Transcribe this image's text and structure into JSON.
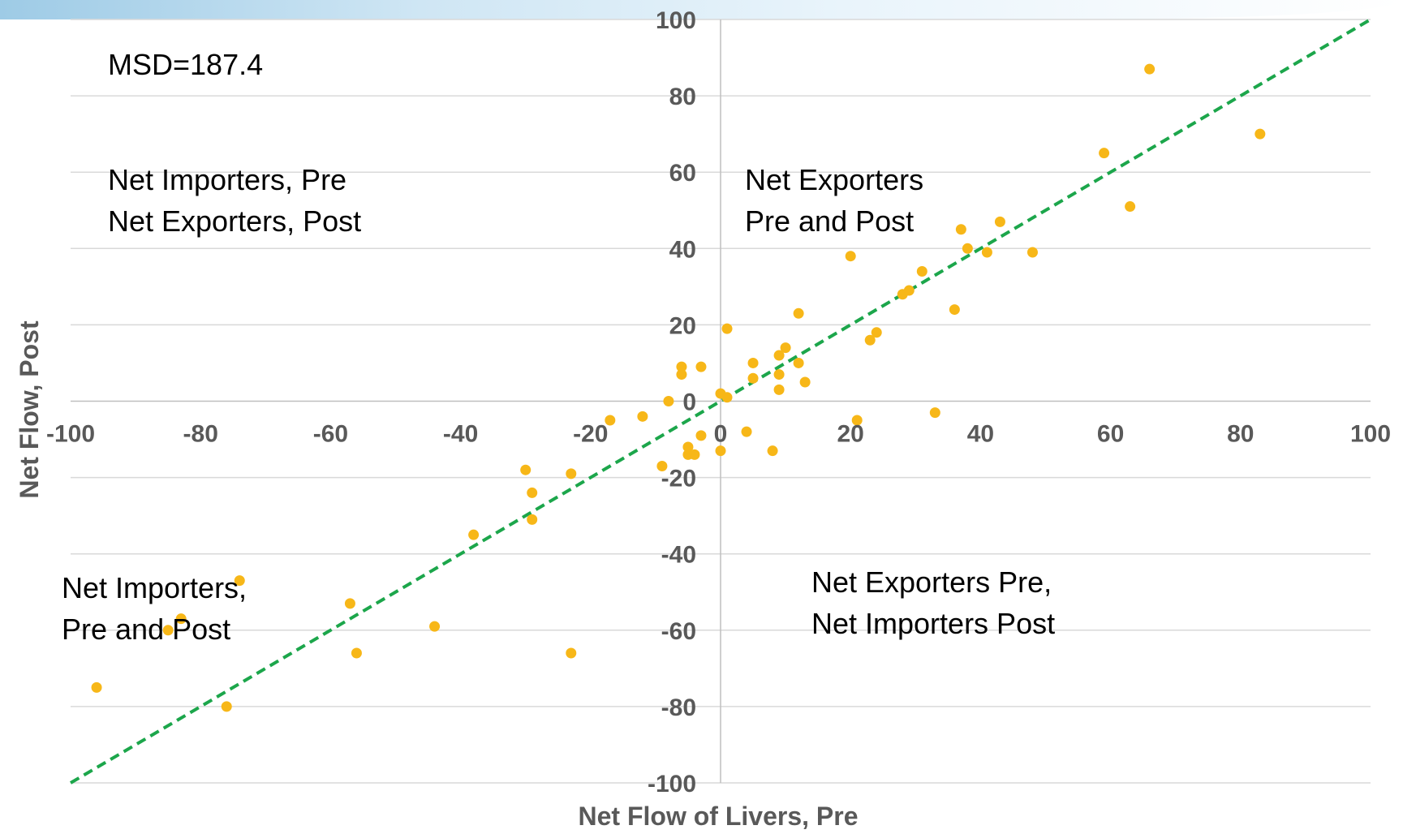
{
  "colors": {
    "point": "#F7B718",
    "reference_line": "#1CA64B",
    "gridline": "#D9D9D9",
    "axis_line": "#BFBFBF",
    "tick_text": "#595959",
    "annotation_text": "#000000"
  },
  "chart_data": {
    "type": "scatter",
    "title": "",
    "xlabel": "Net Flow of Livers, Pre",
    "ylabel": "Net Flow, Post",
    "xlim": [
      -100,
      100
    ],
    "ylim": [
      -100,
      100
    ],
    "x_ticks": [
      -100,
      -80,
      -60,
      -40,
      -20,
      0,
      20,
      40,
      60,
      80,
      100
    ],
    "y_ticks": [
      -100,
      -80,
      -60,
      -40,
      -20,
      0,
      20,
      40,
      60,
      80,
      100
    ],
    "gridlines": "horizontal",
    "legend": "none",
    "reference_line": {
      "style": "dashed",
      "from": [
        -100,
        -100
      ],
      "to": [
        100,
        100
      ]
    },
    "annotations": [
      {
        "id": "msd",
        "lines": [
          "MSD=187.4"
        ]
      },
      {
        "id": "top-left",
        "lines": [
          "Net Importers, Pre",
          "Net Exporters, Post"
        ]
      },
      {
        "id": "top-right",
        "lines": [
          "Net Exporters",
          "Pre and Post"
        ]
      },
      {
        "id": "bottom-left",
        "lines": [
          "Net Importers,",
          "Pre and Post"
        ]
      },
      {
        "id": "bottom-right",
        "lines": [
          "Net Exporters Pre,",
          "Net Importers Post"
        ]
      }
    ],
    "points": [
      {
        "x": -96,
        "y": -75
      },
      {
        "x": -85,
        "y": -60
      },
      {
        "x": -83,
        "y": -57
      },
      {
        "x": -76,
        "y": -80
      },
      {
        "x": -74,
        "y": -47
      },
      {
        "x": -57,
        "y": -53
      },
      {
        "x": -56,
        "y": -66
      },
      {
        "x": -44,
        "y": -59
      },
      {
        "x": -38,
        "y": -35
      },
      {
        "x": -30,
        "y": -18
      },
      {
        "x": -29,
        "y": -24
      },
      {
        "x": -29,
        "y": -31
      },
      {
        "x": -23,
        "y": -19
      },
      {
        "x": -23,
        "y": -66
      },
      {
        "x": -17,
        "y": -5
      },
      {
        "x": -12,
        "y": -4
      },
      {
        "x": -9,
        "y": -17
      },
      {
        "x": -8,
        "y": 0
      },
      {
        "x": -6,
        "y": 9
      },
      {
        "x": -6,
        "y": 7
      },
      {
        "x": -5,
        "y": -12
      },
      {
        "x": -5,
        "y": -14
      },
      {
        "x": -4,
        "y": -14
      },
      {
        "x": -3,
        "y": -9
      },
      {
        "x": -3,
        "y": 9
      },
      {
        "x": 0,
        "y": 2
      },
      {
        "x": 0,
        "y": -13
      },
      {
        "x": 1,
        "y": 1
      },
      {
        "x": 1,
        "y": 19
      },
      {
        "x": 4,
        "y": -8
      },
      {
        "x": 5,
        "y": 10
      },
      {
        "x": 5,
        "y": 6
      },
      {
        "x": 8,
        "y": -13
      },
      {
        "x": 9,
        "y": 12
      },
      {
        "x": 9,
        "y": 7
      },
      {
        "x": 9,
        "y": 3
      },
      {
        "x": 10,
        "y": 14
      },
      {
        "x": 12,
        "y": 23
      },
      {
        "x": 12,
        "y": 10
      },
      {
        "x": 13,
        "y": 5
      },
      {
        "x": 20,
        "y": 38
      },
      {
        "x": 21,
        "y": -5
      },
      {
        "x": 23,
        "y": 16
      },
      {
        "x": 24,
        "y": 18
      },
      {
        "x": 28,
        "y": 28
      },
      {
        "x": 29,
        "y": 29
      },
      {
        "x": 31,
        "y": 34
      },
      {
        "x": 33,
        "y": -3
      },
      {
        "x": 36,
        "y": 24
      },
      {
        "x": 37,
        "y": 45
      },
      {
        "x": 38,
        "y": 40
      },
      {
        "x": 41,
        "y": 39
      },
      {
        "x": 43,
        "y": 47
      },
      {
        "x": 48,
        "y": 39
      },
      {
        "x": 59,
        "y": 65
      },
      {
        "x": 63,
        "y": 51
      },
      {
        "x": 66,
        "y": 87
      },
      {
        "x": 83,
        "y": 70
      }
    ]
  }
}
